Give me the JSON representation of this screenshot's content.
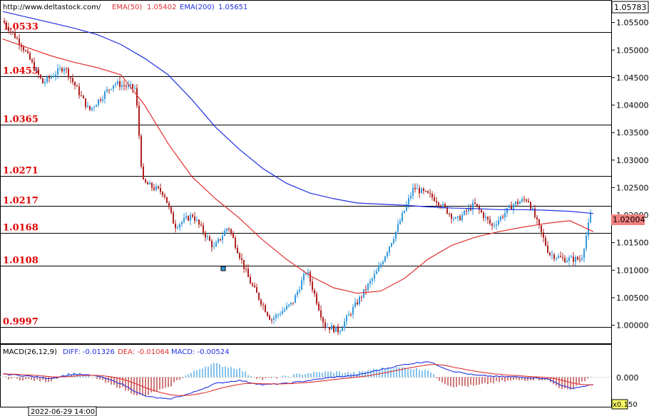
{
  "header": {
    "site": "http://www.deltastock.com/",
    "ema50_label": "EMA(50)",
    "ema50_value": "1.05402",
    "ema200_label": "EMA(200)",
    "ema200_value": "1.05651",
    "ema50_color": "#e03030",
    "ema200_color": "#2030e0"
  },
  "price_panel": {
    "top_label": "1.05783",
    "current_price_label": "1.02004",
    "current_price_bg": "#f08080",
    "ticks": [
      "1.05500",
      "1.05000",
      "1.04500",
      "1.04000",
      "1.03500",
      "1.03000",
      "1.02500",
      "1.02000",
      "1.01500",
      "1.01000",
      "1.00500",
      "1.00000"
    ],
    "levels": [
      "1.0533",
      "1.0453",
      "1.0365",
      "1.0271",
      "1.0217",
      "1.0168",
      "1.0108",
      "0.9997"
    ],
    "up_candle_color": "#3399dd",
    "down_candle_color": "#b02020"
  },
  "macd_panel": {
    "params_label": "MACD(26,12,9)",
    "diff_label": "DIFF: -0.01326",
    "dea_label": "DEA: -0.01064",
    "macd_label": "MACD: -0.00524",
    "zero_tick": "0.000",
    "scale_badge": "x0.1",
    "right_tick": "50"
  },
  "time_axis": {
    "cursor_time": "2022-06-29 14:00"
  },
  "chart_data": {
    "type": "line",
    "symbol_hint": "candlestick price chart with EMA overlays and MACD",
    "ylim": [
      0.998,
      1.0578
    ],
    "horizontal_levels": [
      1.0533,
      1.0453,
      1.0365,
      1.0271,
      1.0217,
      1.0168,
      1.0108,
      0.9997
    ],
    "series": [
      {
        "name": "EMA(50)",
        "values": [
          1.052,
          1.0505,
          1.049,
          1.0478,
          1.0468,
          1.0455,
          1.04,
          1.033,
          1.027,
          1.023,
          1.0195,
          1.0155,
          1.012,
          1.009,
          1.0068,
          1.0058,
          1.0062,
          1.0085,
          1.012,
          1.0145,
          1.016,
          1.017,
          1.0178,
          1.0185,
          1.019,
          1.017
        ]
      },
      {
        "name": "EMA(200)",
        "values": [
          1.057,
          1.056,
          1.055,
          1.054,
          1.0528,
          1.051,
          1.0485,
          1.0455,
          1.041,
          1.036,
          1.032,
          1.0285,
          1.0258,
          1.024,
          1.023,
          1.0222,
          1.022,
          1.0218,
          1.0215,
          1.0213,
          1.0212,
          1.021,
          1.021,
          1.0209,
          1.0207,
          1.0203
        ]
      },
      {
        "name": "MACD",
        "values": [
          0.0005,
          0.0002,
          -0.0002,
          0.0005,
          0.0002,
          -0.001,
          -0.003,
          -0.0035,
          -0.0025,
          -0.001,
          -0.0005,
          -0.0012,
          -0.001,
          -0.0005,
          0.0,
          0.0003,
          0.0012,
          0.002,
          0.0025,
          0.001,
          0.0003,
          0.0001,
          0.0,
          -0.0002,
          -0.0018,
          -0.0012
        ]
      }
    ]
  }
}
